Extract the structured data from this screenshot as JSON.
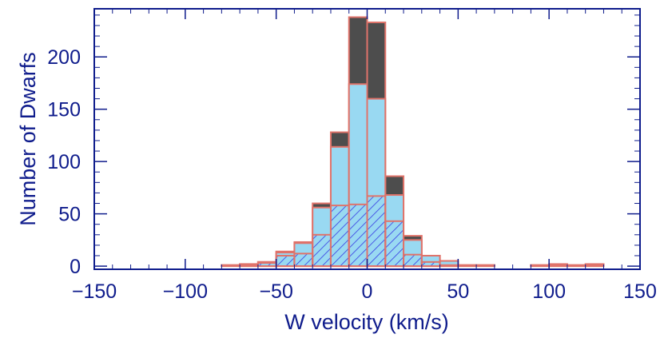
{
  "chart_data": {
    "type": "bar",
    "title": "",
    "xlabel": "W velocity (km/s)",
    "ylabel": "Number of Dwarfs",
    "xlim": [
      -150,
      150
    ],
    "ylim": [
      -3,
      246
    ],
    "x_ticks": [
      -150,
      -100,
      -50,
      0,
      50,
      100,
      150
    ],
    "x_tick_labels": [
      "−150",
      "−100",
      "−50",
      "0",
      "50",
      "100",
      "150"
    ],
    "y_ticks": [
      0,
      50,
      100,
      150,
      200
    ],
    "y_tick_labels": [
      "0",
      "50",
      "100",
      "150",
      "200"
    ],
    "grid": false,
    "bin_width": 10,
    "bin_centers": [
      -75,
      -65,
      -55,
      -45,
      -35,
      -25,
      -15,
      -5,
      5,
      15,
      25,
      35,
      45,
      55,
      65,
      75,
      85,
      95,
      105,
      115,
      125
    ],
    "series": [
      {
        "values": [
          1,
          2,
          4,
          14,
          23,
          60,
          128,
          238,
          233,
          86,
          29,
          10,
          5,
          1,
          1,
          0,
          0,
          1,
          2,
          1,
          2
        ]
      },
      {
        "values": [
          1,
          2,
          4,
          13,
          22,
          56,
          114,
          174,
          160,
          68,
          25,
          10,
          5,
          1,
          1,
          0,
          0,
          1,
          1,
          1,
          1
        ]
      },
      {
        "values": [
          0,
          1,
          3,
          10,
          12,
          30,
          58,
          59,
          67,
          43,
          11,
          4,
          1,
          0,
          0,
          0,
          0,
          0,
          0,
          0,
          0
        ]
      }
    ],
    "colors": {
      "total_fill": "#4d4d4d",
      "middle_fill": "#99d9f2",
      "hatch": "#4a5be6",
      "outline": "#e0736a",
      "axis": "#0f1c8c"
    }
  }
}
